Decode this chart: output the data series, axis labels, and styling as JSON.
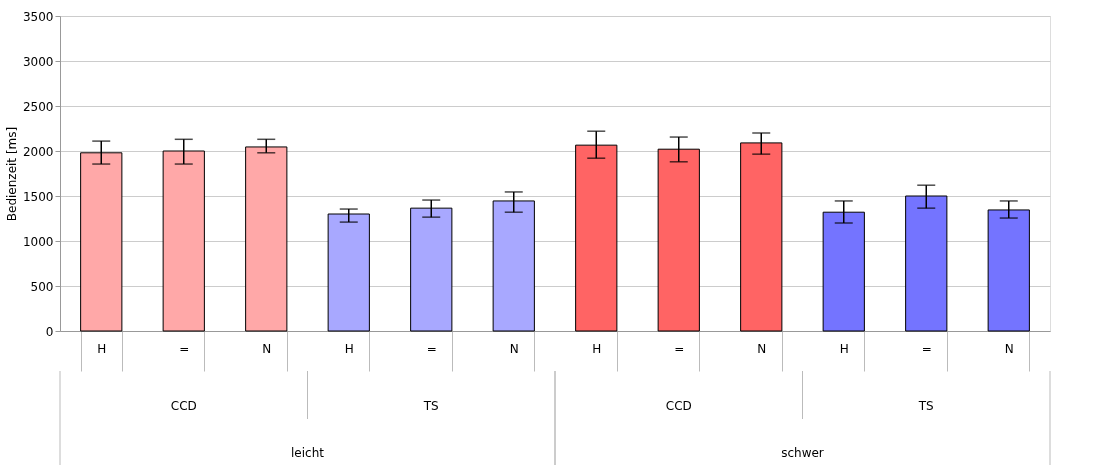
{
  "chart_data": {
    "type": "bar",
    "ylabel": "Bedienzeit [ms]",
    "categories": [
      "H",
      "=",
      "N",
      "H",
      "=",
      "N",
      "H",
      "=",
      "N",
      "H",
      "=",
      "N"
    ],
    "values": [
      1980,
      2000,
      2045,
      1300,
      1365,
      1445,
      2065,
      2020,
      2090,
      1320,
      1500,
      1345
    ],
    "errors": [
      [
        1855,
        2110
      ],
      [
        1855,
        2130
      ],
      [
        1980,
        2130
      ],
      [
        1210,
        1355
      ],
      [
        1265,
        1455
      ],
      [
        1320,
        1545
      ],
      [
        1920,
        2220
      ],
      [
        1880,
        2155
      ],
      [
        1965,
        2200
      ],
      [
        1200,
        1445
      ],
      [
        1365,
        1620
      ],
      [
        1255,
        1445
      ]
    ],
    "colors": [
      "#ffa8a8",
      "#ffa8a8",
      "#ffa8a8",
      "#a8a8ff",
      "#a8a8ff",
      "#a8a8ff",
      "#ff6464",
      "#ff6464",
      "#ff6464",
      "#7474ff",
      "#7474ff",
      "#7474ff"
    ],
    "ylim": [
      0,
      3500
    ],
    "yticks": [
      0,
      500,
      1000,
      1500,
      2000,
      2500,
      3000,
      3500
    ],
    "grid": "y",
    "annotations": [
      "CCD",
      "TS",
      "CCD",
      "TS",
      "leicht",
      "schwer"
    ]
  }
}
